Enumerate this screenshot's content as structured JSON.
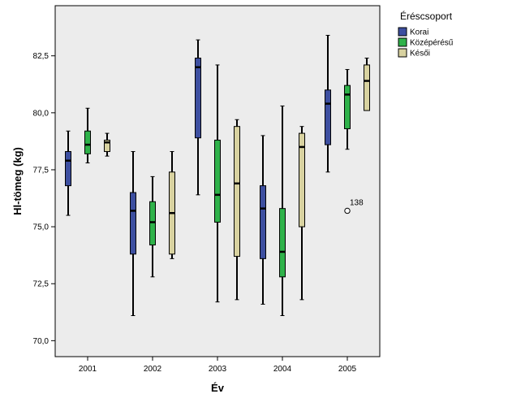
{
  "chart_data": {
    "type": "boxplot",
    "xlabel": "Év",
    "ylabel": "Hl-tömeg (kg)",
    "ylim": [
      69.3,
      84.7
    ],
    "yticks": [
      70.0,
      72.5,
      75.0,
      77.5,
      80.0,
      82.5
    ],
    "ytick_labels": [
      "70,0",
      "72,5",
      "75,0",
      "77,5",
      "80,0",
      "82,5"
    ],
    "categories": [
      "2001",
      "2002",
      "2003",
      "2004",
      "2005"
    ],
    "legend": {
      "title": "Éréscsoport",
      "position": "right"
    },
    "series": [
      {
        "name": "Korai",
        "color": "#3d4fa0",
        "boxes": [
          {
            "min": 75.5,
            "q1": 76.8,
            "median": 77.9,
            "q3": 78.3,
            "max": 79.2
          },
          {
            "min": 71.1,
            "q1": 73.8,
            "median": 75.7,
            "q3": 76.5,
            "max": 78.3
          },
          {
            "min": 76.4,
            "q1": 78.9,
            "median": 82.0,
            "q3": 82.4,
            "max": 83.2
          },
          {
            "min": 71.6,
            "q1": 73.6,
            "median": 75.8,
            "q3": 76.8,
            "max": 79.0
          },
          {
            "min": 77.4,
            "q1": 78.6,
            "median": 80.4,
            "q3": 81.0,
            "max": 83.4
          }
        ]
      },
      {
        "name": "Középérésű",
        "color": "#2fb24a",
        "boxes": [
          {
            "min": 77.8,
            "q1": 78.2,
            "median": 78.6,
            "q3": 79.2,
            "max": 80.2
          },
          {
            "min": 72.8,
            "q1": 74.2,
            "median": 75.2,
            "q3": 76.1,
            "max": 77.2
          },
          {
            "min": 71.7,
            "q1": 75.2,
            "median": 76.4,
            "q3": 78.8,
            "max": 82.1
          },
          {
            "min": 71.1,
            "q1": 72.8,
            "median": 73.9,
            "q3": 75.8,
            "max": 80.3
          },
          {
            "min": 78.4,
            "q1": 79.3,
            "median": 80.8,
            "q3": 81.2,
            "max": 81.9
          }
        ],
        "outliers": [
          {
            "category": "2005",
            "value": 75.7,
            "label": "138"
          }
        ]
      },
      {
        "name": "Késői",
        "color": "#d8d2a0",
        "boxes": [
          {
            "min": 78.1,
            "q1": 78.3,
            "median": 78.7,
            "q3": 78.8,
            "max": 79.1
          },
          {
            "min": 73.6,
            "q1": 73.8,
            "median": 75.6,
            "q3": 77.4,
            "max": 78.3
          },
          {
            "min": 71.8,
            "q1": 73.7,
            "median": 76.9,
            "q3": 79.4,
            "max": 79.7
          },
          {
            "min": 71.8,
            "q1": 75.0,
            "median": 78.5,
            "q3": 79.1,
            "max": 79.4
          },
          {
            "min": 80.1,
            "q1": 80.1,
            "median": 81.4,
            "q3": 82.1,
            "max": 82.4
          }
        ]
      }
    ]
  },
  "colors": {
    "plot_background": "#ececec",
    "axis": "#000000"
  }
}
